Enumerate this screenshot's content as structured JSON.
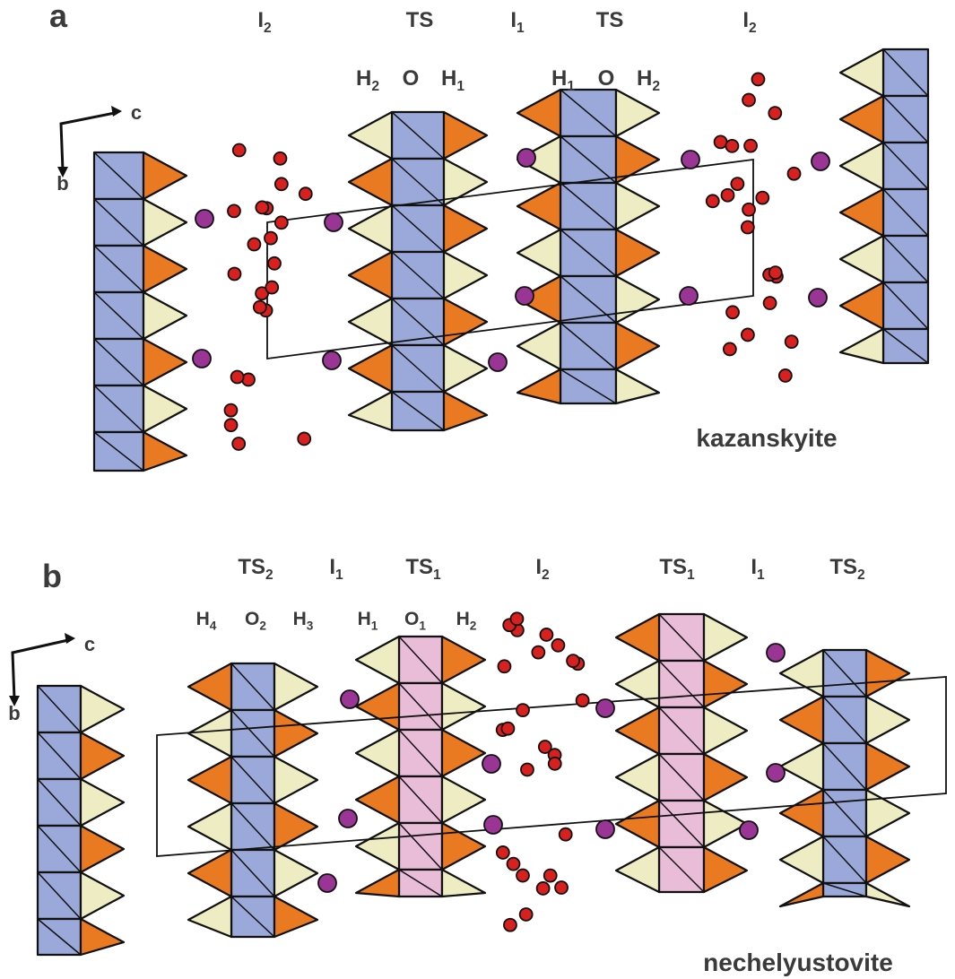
{
  "panel_a": {
    "letter": "a",
    "layer_labels": [
      {
        "text": "I",
        "sub": "2"
      },
      {
        "text": "TS"
      },
      {
        "text": "I",
        "sub": "1"
      },
      {
        "text": "TS"
      },
      {
        "text": "I",
        "sub": "2"
      }
    ],
    "sheet_labels": [
      {
        "text": "H",
        "sub": "2"
      },
      {
        "text": "O"
      },
      {
        "text": "H",
        "sub": "1"
      },
      {
        "text": "H",
        "sub": "1"
      },
      {
        "text": "O"
      },
      {
        "text": "H",
        "sub": "2"
      }
    ],
    "axes": {
      "horizontal": "c",
      "vertical": "b"
    },
    "mineral": "kazanskyite"
  },
  "panel_b": {
    "letter": "b",
    "layer_labels": [
      {
        "text": "TS",
        "sub": "2"
      },
      {
        "text": "I",
        "sub": "1"
      },
      {
        "text": "TS",
        "sub": "1"
      },
      {
        "text": "I",
        "sub": "2"
      },
      {
        "text": "TS",
        "sub": "1"
      },
      {
        "text": "I",
        "sub": "1"
      },
      {
        "text": "TS",
        "sub": "2"
      }
    ],
    "sheet_labels": [
      {
        "text": "H",
        "sub": "4"
      },
      {
        "text": "O",
        "sub": "2"
      },
      {
        "text": "H",
        "sub": "3"
      },
      {
        "text": "H",
        "sub": "1"
      },
      {
        "text": "O",
        "sub": "1"
      },
      {
        "text": "H",
        "sub": "2"
      }
    ],
    "axes": {
      "horizontal": "c",
      "vertical": "b"
    },
    "mineral": "nechelyustovite"
  }
}
